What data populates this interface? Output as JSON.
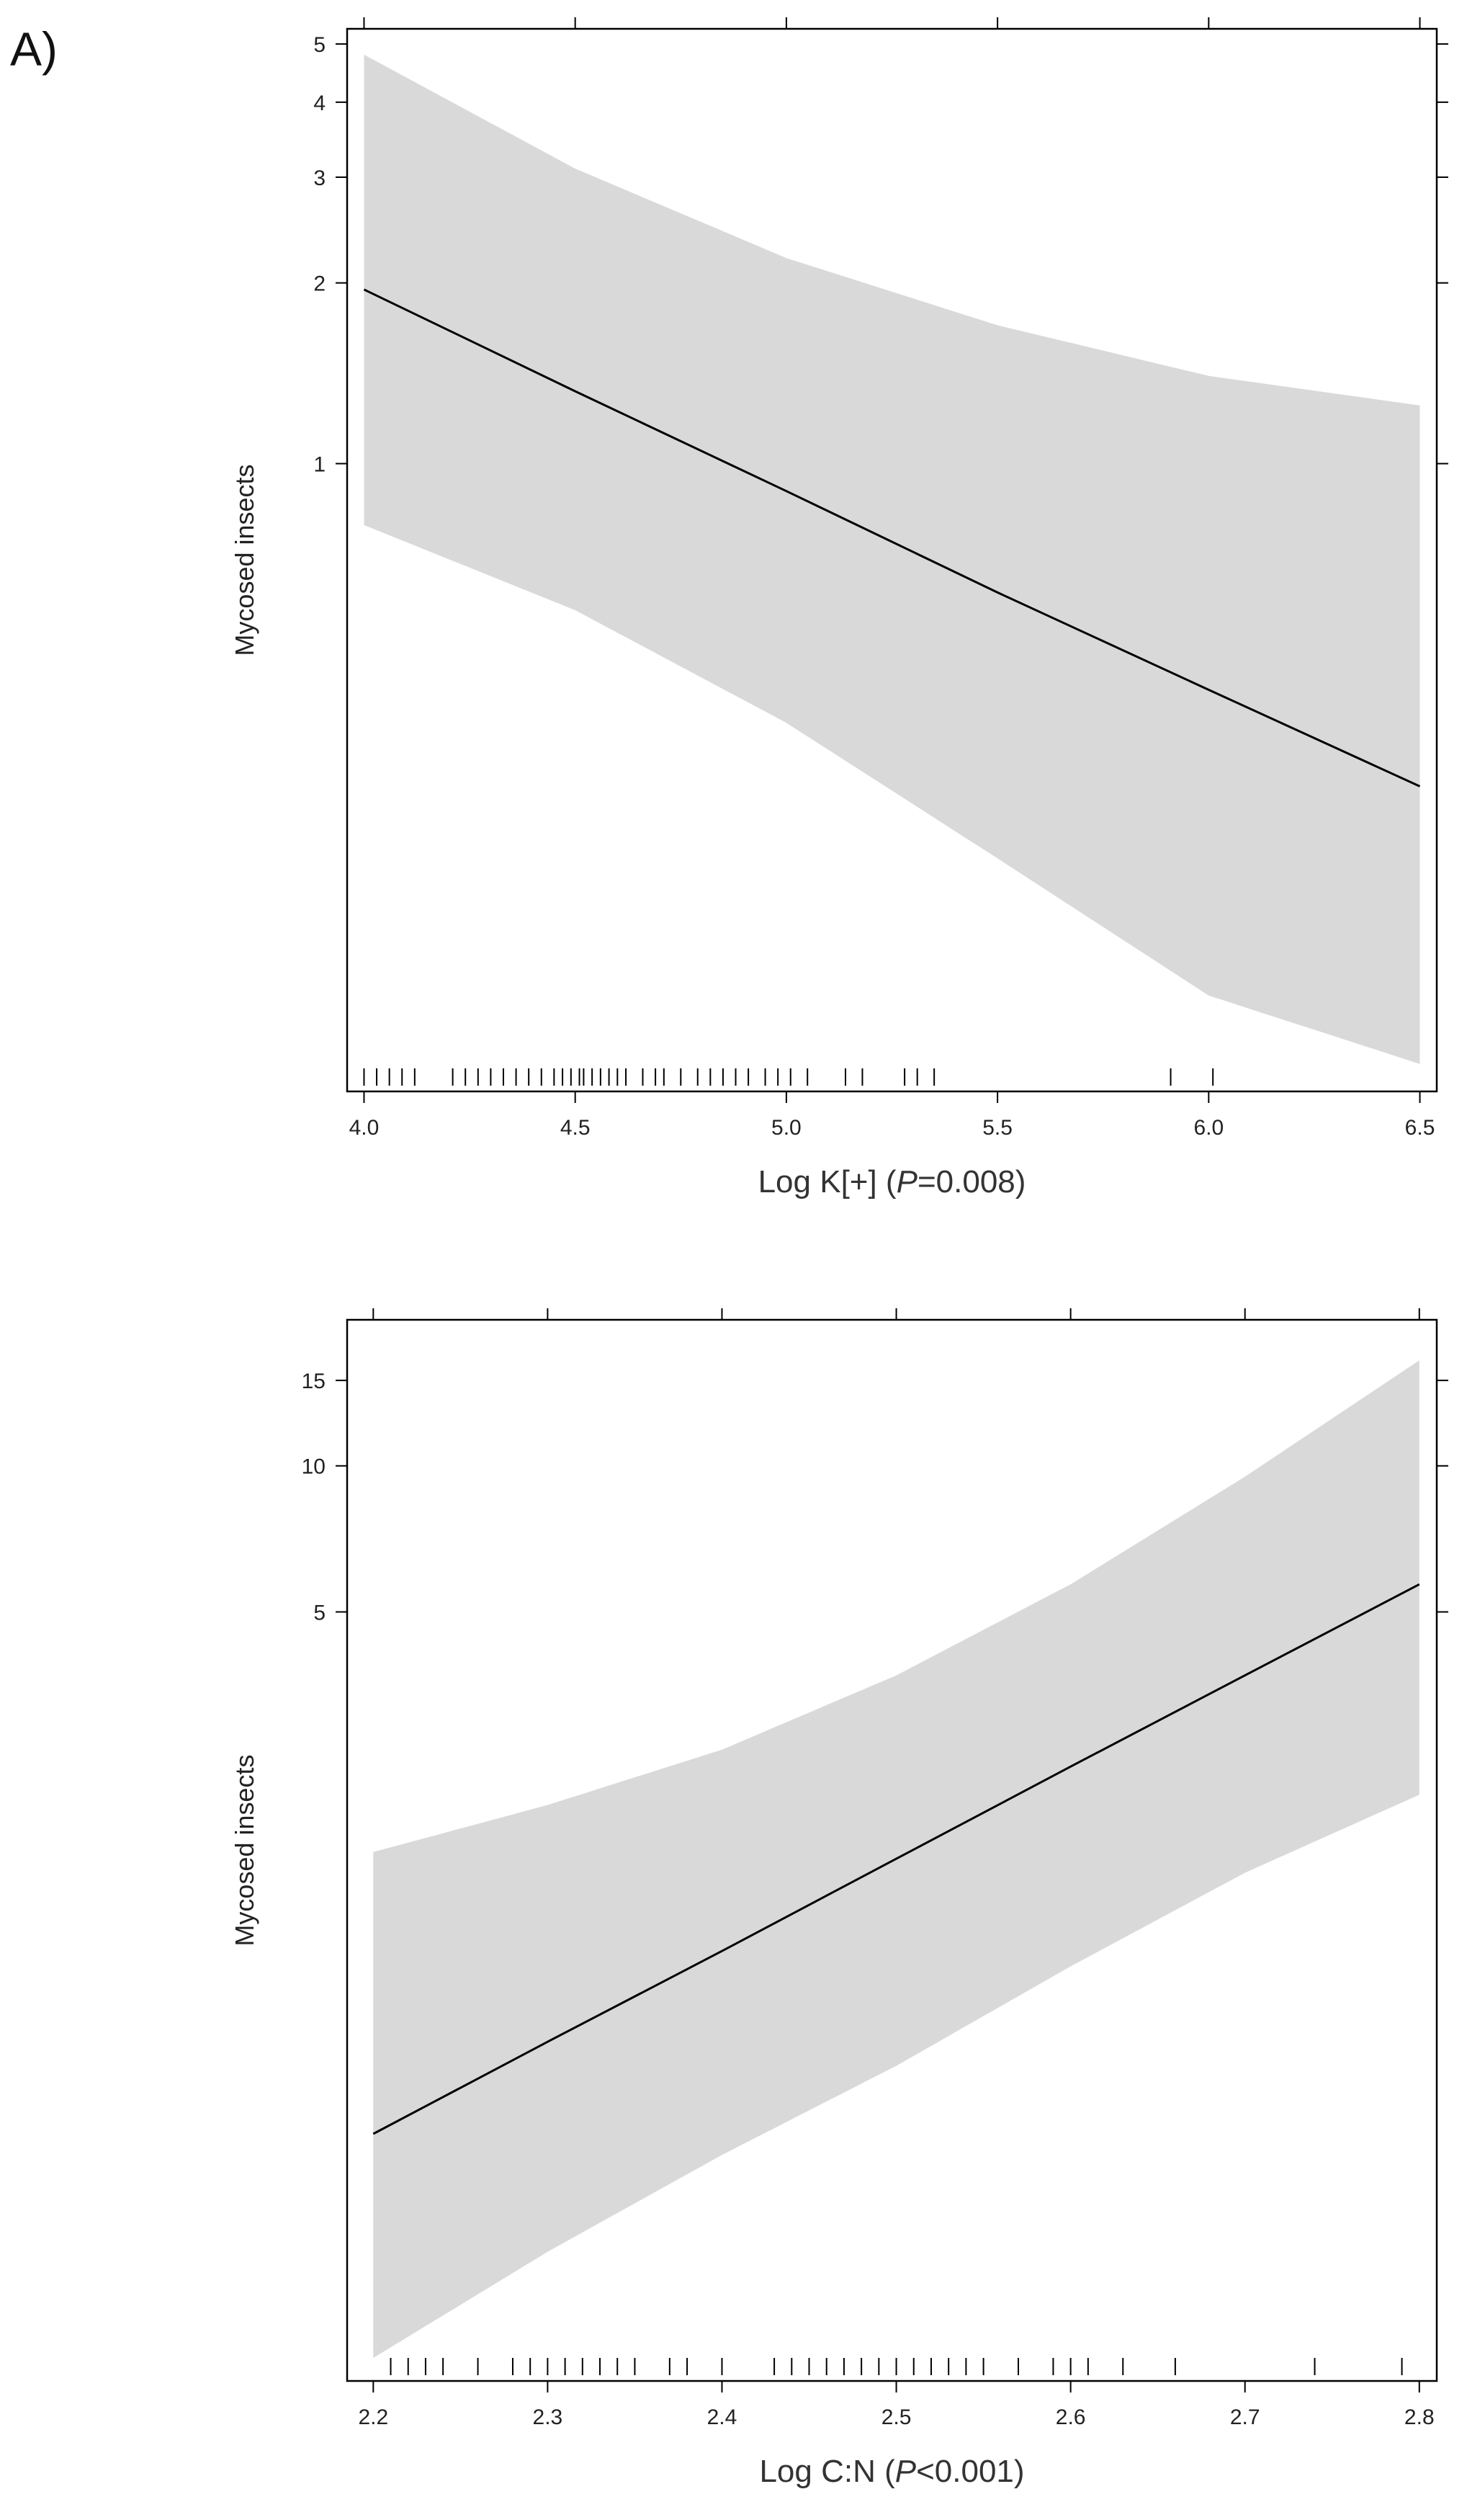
{
  "figure": {
    "panel_label": "A)"
  },
  "chart_data": [
    {
      "type": "line",
      "title": "",
      "xlabel": "Log K[+]",
      "xlabel_stat": "P",
      "xlabel_value": "=0.008",
      "ylabel": "Mycosed insects",
      "y_scale": "log",
      "xlim": [
        3.96,
        6.54
      ],
      "ylim": [
        0.09,
        5.3
      ],
      "x_ticks": [
        4.0,
        4.5,
        5.0,
        5.5,
        6.0,
        6.5
      ],
      "x_tick_labels": [
        "4.0",
        "4.5",
        "5.0",
        "5.5",
        "6.0",
        "6.5"
      ],
      "y_ticks": [
        1,
        2,
        3,
        4,
        5
      ],
      "y_tick_labels": [
        "1",
        "2",
        "3",
        "4",
        "5"
      ],
      "grid": false,
      "series": [
        {
          "role": "fit",
          "x": [
            4.0,
            4.5,
            5.0,
            5.5,
            6.0,
            6.5
          ],
          "y": [
            1.95,
            1.32,
            0.9,
            0.61,
            0.42,
            0.29
          ]
        },
        {
          "role": "ci-upper",
          "x": [
            4.0,
            4.5,
            5.0,
            5.5,
            6.0,
            6.5
          ],
          "y": [
            4.8,
            3.1,
            2.2,
            1.7,
            1.4,
            1.25
          ]
        },
        {
          "role": "ci-lower",
          "x": [
            4.0,
            4.5,
            5.0,
            5.5,
            6.0,
            6.5
          ],
          "y": [
            0.79,
            0.57,
            0.37,
            0.22,
            0.13,
            0.1
          ]
        }
      ],
      "rug": [
        4.0,
        4.03,
        4.06,
        4.09,
        4.12,
        4.21,
        4.24,
        4.27,
        4.3,
        4.33,
        4.36,
        4.39,
        4.42,
        4.45,
        4.47,
        4.49,
        4.51,
        4.52,
        4.54,
        4.56,
        4.58,
        4.6,
        4.62,
        4.66,
        4.69,
        4.71,
        4.75,
        4.79,
        4.82,
        4.85,
        4.88,
        4.91,
        4.95,
        4.98,
        5.01,
        5.05,
        5.14,
        5.18,
        5.28,
        5.31,
        5.35,
        5.91,
        6.01
      ]
    },
    {
      "type": "line",
      "title": "",
      "xlabel": "Log C:N",
      "xlabel_stat": "P",
      "xlabel_value": "<0.001",
      "ylabel": "Mycosed insects",
      "y_scale": "log",
      "xlim": [
        2.185,
        2.81
      ],
      "ylim": [
        0.13,
        20
      ],
      "x_ticks": [
        2.2,
        2.3,
        2.4,
        2.5,
        2.6,
        2.7,
        2.8
      ],
      "x_tick_labels": [
        "2.2",
        "2.3",
        "2.4",
        "2.5",
        "2.6",
        "2.7",
        "2.8"
      ],
      "y_ticks": [
        5,
        10,
        15
      ],
      "y_tick_labels": [
        "5",
        "10",
        "15"
      ],
      "grid": false,
      "series": [
        {
          "role": "fit",
          "x": [
            2.2,
            2.3,
            2.4,
            2.5,
            2.6,
            2.7,
            2.8
          ],
          "y": [
            0.42,
            0.65,
            1.0,
            1.55,
            2.4,
            3.7,
            5.7
          ]
        },
        {
          "role": "ci-upper",
          "x": [
            2.2,
            2.3,
            2.4,
            2.5,
            2.6,
            2.7,
            2.8
          ],
          "y": [
            1.6,
            2.0,
            2.6,
            3.7,
            5.7,
            9.5,
            16.5
          ]
        },
        {
          "role": "ci-lower",
          "x": [
            2.2,
            2.3,
            2.4,
            2.5,
            2.6,
            2.7,
            2.8
          ],
          "y": [
            0.145,
            0.24,
            0.38,
            0.58,
            0.93,
            1.45,
            2.1
          ]
        }
      ],
      "rug": [
        2.21,
        2.22,
        2.23,
        2.24,
        2.26,
        2.28,
        2.29,
        2.3,
        2.31,
        2.32,
        2.33,
        2.34,
        2.35,
        2.37,
        2.38,
        2.4,
        2.43,
        2.44,
        2.45,
        2.46,
        2.47,
        2.48,
        2.49,
        2.5,
        2.51,
        2.52,
        2.53,
        2.54,
        2.55,
        2.57,
        2.59,
        2.6,
        2.61,
        2.63,
        2.66,
        2.74,
        2.79
      ]
    }
  ]
}
